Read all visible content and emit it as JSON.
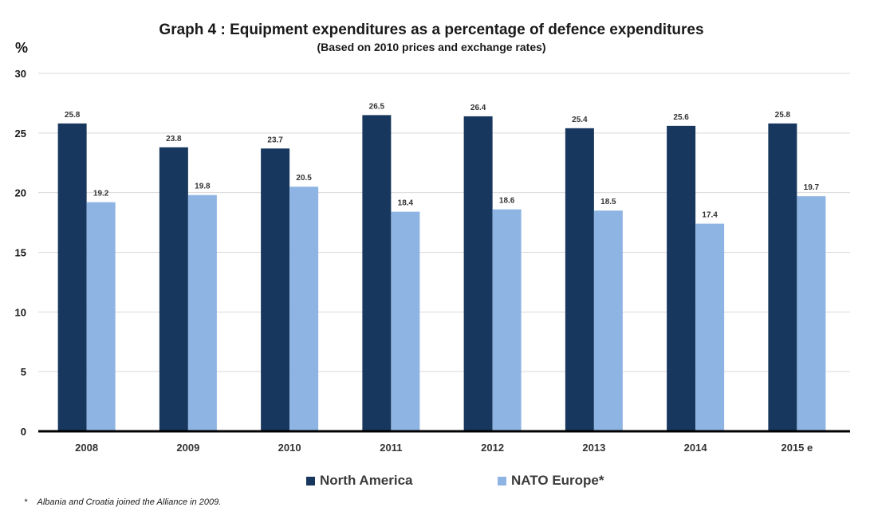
{
  "chart_data": {
    "type": "bar",
    "title": "Graph 4 : Equipment expenditures as a percentage of defence expenditures",
    "subtitle": "(Based on 2010 prices and exchange rates)",
    "ylabel": "%",
    "ylim": [
      0,
      30
    ],
    "yticks": [
      0,
      5,
      10,
      15,
      20,
      25,
      30
    ],
    "grid": true,
    "legend_position": "bottom",
    "categories": [
      "2008",
      "2009",
      "2010",
      "2011",
      "2012",
      "2013",
      "2014",
      "2015 e"
    ],
    "series": [
      {
        "name": "North America",
        "color": "#17375e",
        "values": [
          25.8,
          23.8,
          23.7,
          26.5,
          26.4,
          25.4,
          25.6,
          25.8
        ]
      },
      {
        "name": "NATO Europe*",
        "color": "#8eb4e3",
        "values": [
          19.2,
          19.8,
          20.5,
          18.4,
          18.6,
          18.5,
          17.4,
          19.7
        ]
      }
    ]
  },
  "footnote": {
    "marker": "*",
    "text": "Albania and Croatia joined the Alliance in 2009."
  }
}
